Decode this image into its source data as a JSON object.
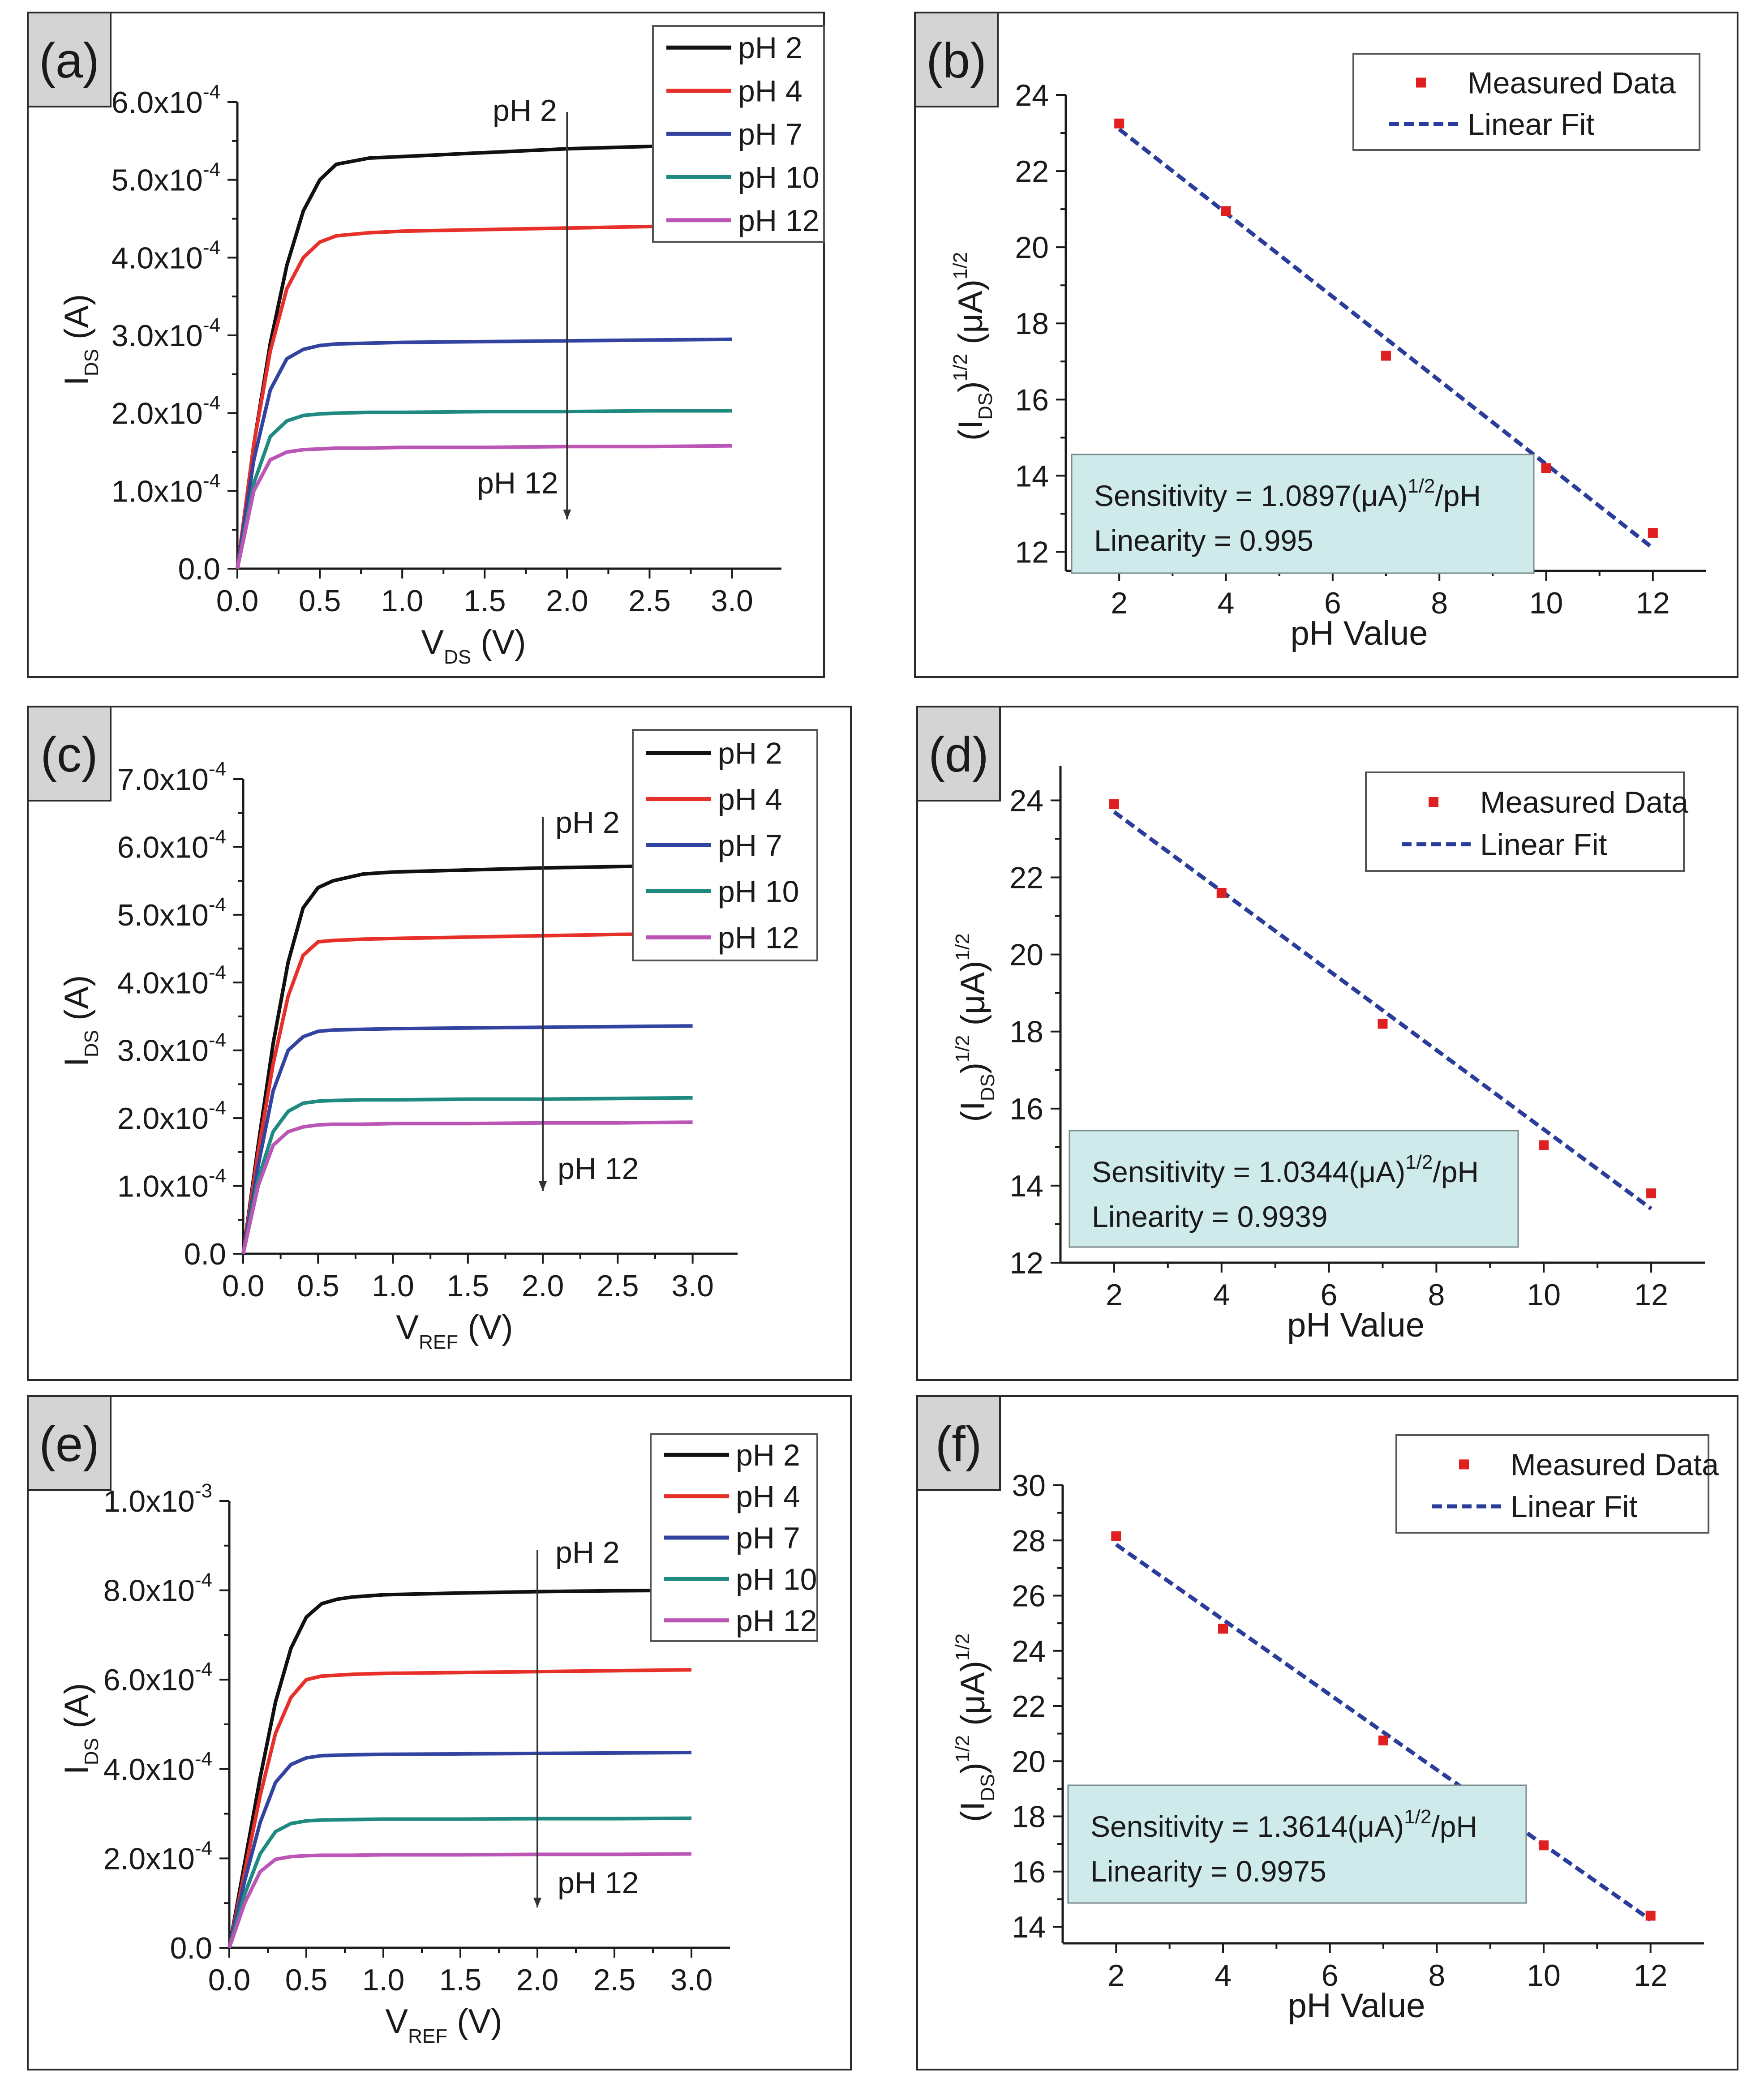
{
  "colors": {
    "pH 2": "#111111",
    "pH 4": "#e8302a",
    "pH 7": "#3344a0",
    "pH 10": "#1f8a80",
    "pH 12": "#bb55b6",
    "measured": "#e02020",
    "fit": "#2a3d9a"
  },
  "chart_data": [
    {
      "panel": "(a)",
      "type": "line",
      "xlabel": "V",
      "xlabel_sub": "DS",
      "xlabel_unit": " (V)",
      "ylabel": "I",
      "ylabel_sub": "DS",
      "ylabel_unit": " (A)",
      "xlim": [
        0,
        3.3
      ],
      "ylim": [
        0,
        0.0006
      ],
      "xticks": [
        0,
        0.5,
        1.0,
        1.5,
        2.0,
        2.5,
        3.0
      ],
      "xtick_labels": [
        "0.0",
        "0.5",
        "1.0",
        "1.5",
        "2.0",
        "2.5",
        "3.0"
      ],
      "yticks": [
        0,
        0.0001,
        0.0002,
        0.0003,
        0.0004,
        0.0005,
        0.0006
      ],
      "ytick_labels": [
        {
          "m": "0.0",
          "e": ""
        },
        {
          "m": "1.0x10",
          "e": "-4"
        },
        {
          "m": "2.0x10",
          "e": "-4"
        },
        {
          "m": "3.0x10",
          "e": "-4"
        },
        {
          "m": "4.0x10",
          "e": "-4"
        },
        {
          "m": "5.0x10",
          "e": "-4"
        },
        {
          "m": "6.0x10",
          "e": "-4"
        }
      ],
      "arrow": {
        "x": 2.0,
        "top_label": "pH 2",
        "bottom_label": "pH 12"
      },
      "series": [
        {
          "name": "pH 2",
          "x": [
            0,
            0.1,
            0.2,
            0.3,
            0.4,
            0.5,
            0.6,
            0.8,
            1.0,
            1.5,
            2.0,
            2.5,
            3.0
          ],
          "values": [
            0,
            0.00016,
            0.00029,
            0.00039,
            0.00046,
            0.0005,
            0.00052,
            0.000528,
            0.00053,
            0.000535,
            0.00054,
            0.000543,
            0.000545
          ]
        },
        {
          "name": "pH 4",
          "x": [
            0,
            0.1,
            0.2,
            0.3,
            0.4,
            0.5,
            0.6,
            0.8,
            1.0,
            1.5,
            2.0,
            2.5,
            3.0
          ],
          "values": [
            0,
            0.00016,
            0.00028,
            0.00036,
            0.0004,
            0.00042,
            0.000428,
            0.000432,
            0.000434,
            0.000436,
            0.000438,
            0.00044,
            0.000442
          ]
        },
        {
          "name": "pH 7",
          "x": [
            0,
            0.1,
            0.2,
            0.3,
            0.4,
            0.5,
            0.6,
            0.8,
            1.0,
            1.5,
            2.0,
            2.5,
            3.0
          ],
          "values": [
            0,
            0.00014,
            0.00023,
            0.00027,
            0.000282,
            0.000287,
            0.000289,
            0.00029,
            0.000291,
            0.000292,
            0.000293,
            0.000294,
            0.000295
          ]
        },
        {
          "name": "pH 10",
          "x": [
            0,
            0.1,
            0.2,
            0.3,
            0.4,
            0.5,
            0.6,
            0.8,
            1.0,
            1.5,
            2.0,
            2.5,
            3.0
          ],
          "values": [
            0,
            0.00011,
            0.00017,
            0.00019,
            0.000197,
            0.000199,
            0.0002,
            0.000201,
            0.000201,
            0.000202,
            0.000202,
            0.000203,
            0.000203
          ]
        },
        {
          "name": "pH 12",
          "x": [
            0,
            0.1,
            0.2,
            0.3,
            0.4,
            0.5,
            0.6,
            0.8,
            1.0,
            1.5,
            2.0,
            2.5,
            3.0
          ],
          "values": [
            0,
            0.0001,
            0.00014,
            0.00015,
            0.000153,
            0.000154,
            0.000155,
            0.000155,
            0.000156,
            0.000156,
            0.000157,
            0.000157,
            0.000158
          ]
        }
      ]
    },
    {
      "panel": "(b)",
      "type": "scatter",
      "xlabel": "pH Value",
      "ylabel": "(I",
      "ylabel_sub": "DS",
      "ylabel_sup1": "1/2",
      "ylabel_mid": " (μA)",
      "ylabel_sup2": "1/2",
      "xlim": [
        1,
        13
      ],
      "ylim": [
        11.5,
        24
      ],
      "xticks": [
        2,
        4,
        6,
        8,
        10,
        12
      ],
      "xtick_labels": [
        "2",
        "4",
        "6",
        "8",
        "10",
        "12"
      ],
      "yticks": [
        12,
        14,
        16,
        18,
        20,
        22,
        24
      ],
      "ytick_labels": [
        "12",
        "14",
        "16",
        "18",
        "20",
        "22",
        "24"
      ],
      "legend": [
        "Measured Data",
        "Linear Fit"
      ],
      "sensitivity_text": "Sensitivity = 1.0897(μA)",
      "sensitivity_sup": "1/2",
      "sensitivity_unit": "/pH",
      "linearity_text": "Linearity = 0.995",
      "measured": {
        "x": [
          2,
          4,
          7,
          10,
          12
        ],
        "y": [
          23.25,
          20.95,
          17.15,
          14.2,
          12.5
        ]
      },
      "fit": {
        "x": [
          2,
          12
        ],
        "y": [
          23.1,
          12.1
        ]
      }
    },
    {
      "panel": "(c)",
      "type": "line",
      "xlabel": "V",
      "xlabel_sub": "REF",
      "xlabel_unit": " (V)",
      "ylabel": "I",
      "ylabel_sub": "DS",
      "ylabel_unit": " (A)",
      "xlim": [
        0,
        3.3
      ],
      "ylim": [
        0,
        0.0007
      ],
      "xticks": [
        0,
        0.5,
        1.0,
        1.5,
        2.0,
        2.5,
        3.0
      ],
      "xtick_labels": [
        "0.0",
        "0.5",
        "1.0",
        "1.5",
        "2.0",
        "2.5",
        "3.0"
      ],
      "yticks": [
        0,
        0.0001,
        0.0002,
        0.0003,
        0.0004,
        0.0005,
        0.0006,
        0.0007
      ],
      "ytick_labels": [
        {
          "m": "0.0",
          "e": ""
        },
        {
          "m": "1.0x10",
          "e": "-4"
        },
        {
          "m": "2.0x10",
          "e": "-4"
        },
        {
          "m": "3.0x10",
          "e": "-4"
        },
        {
          "m": "4.0x10",
          "e": "-4"
        },
        {
          "m": "5.0x10",
          "e": "-4"
        },
        {
          "m": "6.0x10",
          "e": "-4"
        },
        {
          "m": "7.0x10",
          "e": "-4"
        }
      ],
      "arrow": {
        "x": 2.0,
        "top_label": "pH 2",
        "bottom_label": "pH 12"
      },
      "series": [
        {
          "name": "pH 2",
          "x": [
            0,
            0.1,
            0.2,
            0.3,
            0.4,
            0.5,
            0.6,
            0.8,
            1.0,
            1.5,
            2.0,
            2.5,
            3.0
          ],
          "values": [
            0,
            0.00016,
            0.00031,
            0.00043,
            0.00051,
            0.00054,
            0.00055,
            0.00056,
            0.000563,
            0.000566,
            0.000569,
            0.000571,
            0.000573
          ]
        },
        {
          "name": "pH 4",
          "x": [
            0,
            0.1,
            0.2,
            0.3,
            0.4,
            0.5,
            0.6,
            0.8,
            1.0,
            1.5,
            2.0,
            2.5,
            3.0
          ],
          "values": [
            0,
            0.00015,
            0.00028,
            0.00038,
            0.00044,
            0.00046,
            0.000462,
            0.000464,
            0.000465,
            0.000467,
            0.000469,
            0.000471,
            0.000472
          ]
        },
        {
          "name": "pH 7",
          "x": [
            0,
            0.1,
            0.2,
            0.3,
            0.4,
            0.5,
            0.6,
            0.8,
            1.0,
            1.5,
            2.0,
            2.5,
            3.0
          ],
          "values": [
            0,
            0.00013,
            0.00024,
            0.0003,
            0.00032,
            0.000328,
            0.00033,
            0.000331,
            0.000332,
            0.000333,
            0.000334,
            0.000335,
            0.000336
          ]
        },
        {
          "name": "pH 10",
          "x": [
            0,
            0.1,
            0.2,
            0.3,
            0.4,
            0.5,
            0.6,
            0.8,
            1.0,
            1.5,
            2.0,
            2.5,
            3.0
          ],
          "values": [
            0,
            0.00011,
            0.00018,
            0.00021,
            0.000222,
            0.000225,
            0.000226,
            0.000227,
            0.000227,
            0.000228,
            0.000228,
            0.000229,
            0.00023
          ]
        },
        {
          "name": "pH 12",
          "x": [
            0,
            0.1,
            0.2,
            0.3,
            0.4,
            0.5,
            0.6,
            0.8,
            1.0,
            1.5,
            2.0,
            2.5,
            3.0
          ],
          "values": [
            0,
            0.0001,
            0.00016,
            0.00018,
            0.000187,
            0.00019,
            0.000191,
            0.000191,
            0.000192,
            0.000192,
            0.000193,
            0.000193,
            0.000194
          ]
        }
      ]
    },
    {
      "panel": "(d)",
      "type": "scatter",
      "xlabel": "pH Value",
      "ylabel": "(I",
      "ylabel_sub": "DS",
      "ylabel_sup1": "1/2",
      "ylabel_mid": " (μA)",
      "ylabel_sup2": "1/2",
      "xlim": [
        1,
        13
      ],
      "ylim": [
        12,
        24.9
      ],
      "xticks": [
        2,
        4,
        6,
        8,
        10,
        12
      ],
      "xtick_labels": [
        "2",
        "4",
        "6",
        "8",
        "10",
        "12"
      ],
      "yticks": [
        12,
        14,
        16,
        18,
        20,
        22,
        24
      ],
      "ytick_labels": [
        "12",
        "14",
        "16",
        "18",
        "20",
        "22",
        "24"
      ],
      "legend": [
        "Measured Data",
        "Linear Fit"
      ],
      "sensitivity_text": "Sensitivity = 1.0344(μA)",
      "sensitivity_sup": "1/2",
      "sensitivity_unit": "/pH",
      "linearity_text": "Linearity = 0.9939",
      "measured": {
        "x": [
          2,
          4,
          7,
          10,
          12
        ],
        "y": [
          23.9,
          21.6,
          18.2,
          15.05,
          13.8
        ]
      },
      "fit": {
        "x": [
          2,
          12
        ],
        "y": [
          23.7,
          13.4
        ]
      }
    },
    {
      "panel": "(e)",
      "type": "line",
      "xlabel": "V",
      "xlabel_sub": "REF",
      "xlabel_unit": " (V)",
      "ylabel": "I",
      "ylabel_sub": "DS",
      "ylabel_unit": " (A)",
      "xlim": [
        0,
        3.25
      ],
      "ylim": [
        0,
        0.001
      ],
      "xticks": [
        0,
        0.5,
        1.0,
        1.5,
        2.0,
        2.5,
        3.0
      ],
      "xtick_labels": [
        "0.0",
        "0.5",
        "1.0",
        "1.5",
        "2.0",
        "2.5",
        "3.0"
      ],
      "yticks": [
        0,
        0.0002,
        0.0004,
        0.0006,
        0.0008,
        0.001
      ],
      "ytick_labels": [
        {
          "m": "0.0",
          "e": ""
        },
        {
          "m": "2.0x10",
          "e": "-4"
        },
        {
          "m": "4.0x10",
          "e": "-4"
        },
        {
          "m": "6.0x10",
          "e": "-4"
        },
        {
          "m": "8.0x10",
          "e": "-4"
        },
        {
          "m": "1.0x10",
          "e": "-3"
        }
      ],
      "arrow": {
        "x": 2.0,
        "top_label": "pH 2",
        "bottom_label": "pH 12"
      },
      "series": [
        {
          "name": "pH 2",
          "x": [
            0,
            0.1,
            0.2,
            0.3,
            0.4,
            0.5,
            0.6,
            0.7,
            0.8,
            1.0,
            1.5,
            2.0,
            2.5,
            3.0
          ],
          "values": [
            0,
            0.00019,
            0.00038,
            0.00055,
            0.00067,
            0.00074,
            0.00077,
            0.00078,
            0.000785,
            0.00079,
            0.000794,
            0.000797,
            0.000799,
            0.0008
          ]
        },
        {
          "name": "pH 4",
          "x": [
            0,
            0.1,
            0.2,
            0.3,
            0.4,
            0.5,
            0.6,
            0.8,
            1.0,
            1.5,
            2.0,
            2.5,
            3.0
          ],
          "values": [
            0,
            0.00017,
            0.00034,
            0.00048,
            0.00056,
            0.0006,
            0.000608,
            0.000612,
            0.000614,
            0.000616,
            0.000618,
            0.00062,
            0.000622
          ]
        },
        {
          "name": "pH 7",
          "x": [
            0,
            0.1,
            0.2,
            0.3,
            0.4,
            0.5,
            0.6,
            0.8,
            1.0,
            1.5,
            2.0,
            2.5,
            3.0
          ],
          "values": [
            0,
            0.00015,
            0.00028,
            0.00037,
            0.00041,
            0.000425,
            0.00043,
            0.000432,
            0.000433,
            0.000434,
            0.000435,
            0.000436,
            0.000437
          ]
        },
        {
          "name": "pH 10",
          "x": [
            0,
            0.1,
            0.2,
            0.3,
            0.4,
            0.5,
            0.6,
            0.8,
            1.0,
            1.5,
            2.0,
            2.5,
            3.0
          ],
          "values": [
            0,
            0.00012,
            0.00021,
            0.00026,
            0.000278,
            0.000284,
            0.000286,
            0.000287,
            0.000288,
            0.000288,
            0.000289,
            0.000289,
            0.00029
          ]
        },
        {
          "name": "pH 12",
          "x": [
            0,
            0.1,
            0.2,
            0.3,
            0.4,
            0.5,
            0.6,
            0.8,
            1.0,
            1.5,
            2.0,
            2.5,
            3.0
          ],
          "values": [
            0,
            0.0001,
            0.00017,
            0.000198,
            0.000204,
            0.000206,
            0.000207,
            0.000207,
            0.000208,
            0.000208,
            0.000209,
            0.000209,
            0.00021
          ]
        }
      ]
    },
    {
      "panel": "(f)",
      "type": "scatter",
      "xlabel": "pH Value",
      "ylabel": "(I",
      "ylabel_sub": "DS",
      "ylabel_sup1": "1/2",
      "ylabel_mid": " (μA)",
      "ylabel_sup2": "1/2",
      "xlim": [
        1,
        13
      ],
      "ylim": [
        13.4,
        30
      ],
      "xticks": [
        2,
        4,
        6,
        8,
        10,
        12
      ],
      "xtick_labels": [
        "2",
        "4",
        "6",
        "8",
        "10",
        "12"
      ],
      "yticks": [
        14,
        16,
        18,
        20,
        22,
        24,
        26,
        28,
        30
      ],
      "ytick_labels": [
        "14",
        "16",
        "18",
        "20",
        "22",
        "24",
        "26",
        "28",
        "30"
      ],
      "legend": [
        "Measured Data",
        "Linear Fit"
      ],
      "sensitivity_text": "Sensitivity = 1.3614(μA)",
      "sensitivity_sup": "1/2",
      "sensitivity_unit": "/pH",
      "linearity_text": "Linearity = 0.9975",
      "measured": {
        "x": [
          2,
          4,
          7,
          10,
          12
        ],
        "y": [
          28.15,
          24.8,
          20.75,
          16.95,
          14.4
        ]
      },
      "fit": {
        "x": [
          2,
          12
        ],
        "y": [
          27.85,
          14.25
        ]
      }
    }
  ]
}
